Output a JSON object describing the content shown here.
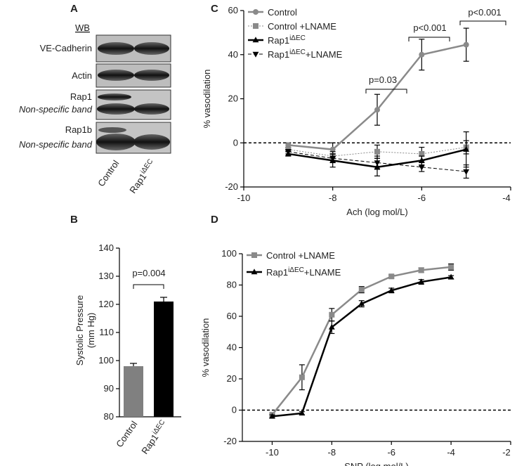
{
  "blot": {
    "panel": "A",
    "header": "WB",
    "rows": [
      {
        "label": "VE-Cadherin"
      },
      {
        "label": "Actin"
      },
      {
        "label": "Rap1",
        "sublabel": "Non-specific band"
      },
      {
        "label": "Rap1b",
        "sublabel": "Non-specific band"
      }
    ],
    "lanes": [
      {
        "name": "Control"
      },
      {
        "name": "Rap1",
        "superscript": "iΔEC"
      }
    ]
  },
  "chart_data": [
    {
      "type": "bar",
      "panel": "B",
      "ylabel": [
        "Systolic Pressure",
        "(mm Hg)"
      ],
      "categories": [
        "Control",
        "Rap1"
      ],
      "category_superscripts": [
        null,
        "iΔEC"
      ],
      "values": [
        98,
        121
      ],
      "errors": [
        1,
        1.5
      ],
      "colors": [
        "#808080",
        "#000000"
      ],
      "ylim": [
        80,
        140
      ],
      "yticks": [
        80,
        90,
        100,
        110,
        120,
        130,
        140
      ],
      "annotations": [
        "p=0.004"
      ]
    },
    {
      "type": "line",
      "panel": "C",
      "xlabel": "Ach (log mol/L)",
      "ylabel": "% vasodilation",
      "x": [
        -9,
        -8,
        -7,
        -6,
        -5
      ],
      "xlim": [
        -10,
        -4
      ],
      "xticks": [
        -10,
        -8,
        -6,
        -4
      ],
      "ylim": [
        -20,
        60
      ],
      "yticks": [
        -20,
        0,
        20,
        40,
        60
      ],
      "zero_line": true,
      "legend": "upper left",
      "annotations": [
        "p=0.03",
        "p<0.001",
        "p<0.001"
      ],
      "series": [
        {
          "name": "Control",
          "color": "#8a8a8a",
          "marker": "circle",
          "dash": "solid",
          "width": 2.5,
          "values": [
            -1,
            -3,
            15,
            40,
            44.5
          ],
          "errors": [
            1,
            3,
            7,
            7,
            7.5
          ]
        },
        {
          "name": "Control",
          "name_suffix": " +LNAME",
          "color": "#8a8a8a",
          "marker": "square",
          "dash": "dotted",
          "width": 1,
          "values": [
            -3,
            -6,
            -4,
            -5,
            -2
          ],
          "errors": [
            1,
            2,
            3,
            3,
            3
          ]
        },
        {
          "name": "Rap1",
          "name_superscript": "iΔEC",
          "color": "#000000",
          "marker": "triangle",
          "dash": "solid",
          "width": 2.5,
          "values": [
            -5,
            -8,
            -11,
            -8,
            -3
          ],
          "errors": [
            1,
            3,
            4,
            2,
            8
          ]
        },
        {
          "name": "Rap1",
          "name_superscript": "iΔEC",
          "name_suffix": "+LNAME",
          "color": "#000000",
          "marker": "triangle-down",
          "dash": "dashed",
          "width": 1,
          "values": [
            -4,
            -7,
            -9,
            -11,
            -13
          ],
          "errors": [
            1,
            2,
            3,
            2,
            3
          ]
        }
      ]
    },
    {
      "type": "line",
      "panel": "D",
      "xlabel": "SNP (log mol/L)",
      "ylabel": "% vasodilation",
      "x": [
        -10,
        -9,
        -8,
        -7,
        -6,
        -5,
        -4
      ],
      "xlim": [
        -11,
        -2
      ],
      "xticks": [
        -10,
        -8,
        -6,
        -4,
        -2
      ],
      "ylim": [
        -20,
        100
      ],
      "yticks": [
        -20,
        0,
        20,
        40,
        60,
        80,
        100
      ],
      "zero_line": true,
      "legend": "upper left",
      "series": [
        {
          "name": "Control",
          "name_suffix": " +LNAME",
          "color": "#8a8a8a",
          "marker": "square",
          "dash": "solid",
          "width": 2.5,
          "values": [
            -3,
            21,
            61,
            77,
            85.5,
            89.5,
            91.5
          ],
          "errors": [
            1,
            8,
            4,
            2,
            1,
            1.5,
            2
          ]
        },
        {
          "name": "Rap1",
          "name_superscript": "iΔEC",
          "name_suffix": "+LNAME",
          "color": "#000000",
          "marker": "triangle",
          "dash": "solid",
          "width": 2.5,
          "values": [
            -4,
            -2,
            53,
            68,
            76.5,
            82,
            85
          ],
          "errors": [
            1,
            1,
            4,
            2,
            1.5,
            1.5,
            1
          ]
        }
      ]
    }
  ]
}
